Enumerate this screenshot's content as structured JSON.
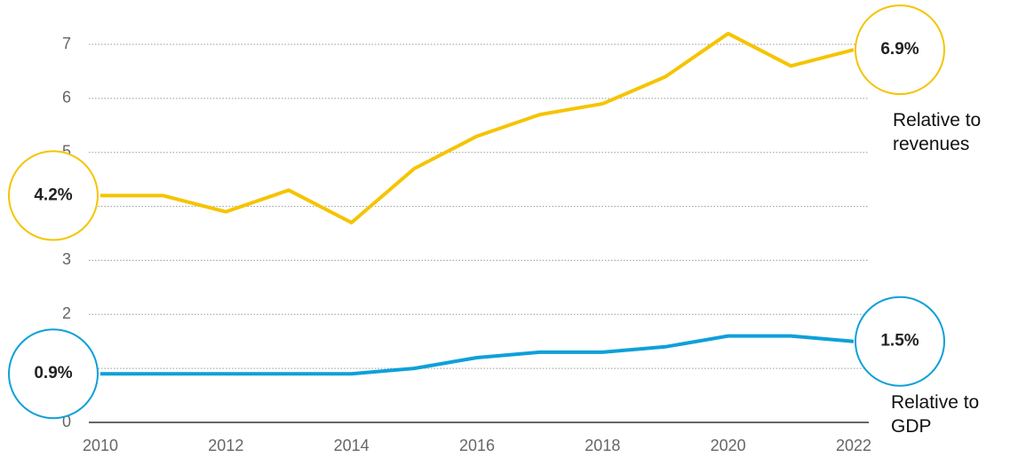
{
  "chart_data": {
    "type": "line",
    "x": [
      2010,
      2011,
      2012,
      2013,
      2014,
      2015,
      2016,
      2017,
      2018,
      2019,
      2020,
      2021,
      2022
    ],
    "xlim": [
      2010,
      2022
    ],
    "xticks": [
      2010,
      2012,
      2014,
      2016,
      2018,
      2020,
      2022
    ],
    "ylim": [
      0,
      7
    ],
    "yticks": [
      0,
      1,
      2,
      3,
      4,
      5,
      6,
      7
    ],
    "grid": true,
    "series": [
      {
        "name": "Relative to revenues",
        "color": "#f5c400",
        "values": [
          4.2,
          4.2,
          3.9,
          4.3,
          3.7,
          4.7,
          5.3,
          5.7,
          5.9,
          6.4,
          7.2,
          6.6,
          6.9
        ],
        "value_labels": [
          "4.2%",
          null,
          null,
          null,
          null,
          null,
          null,
          null,
          null,
          null,
          null,
          null,
          "6.9%"
        ]
      },
      {
        "name": "Relative to GDP",
        "color": "#0ea0d8",
        "values": [
          0.9,
          0.9,
          0.9,
          0.9,
          0.9,
          1.0,
          1.2,
          1.3,
          1.3,
          1.4,
          1.6,
          1.6,
          1.5
        ],
        "value_labels": [
          "0.9%",
          null,
          null,
          null,
          null,
          null,
          null,
          null,
          null,
          null,
          null,
          null,
          "1.5%"
        ]
      }
    ]
  }
}
